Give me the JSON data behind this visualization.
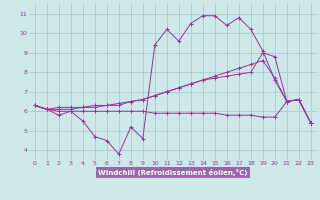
{
  "title": "",
  "xlabel": "Windchill (Refroidissement éolien,°C)",
  "background_color": "#cce8e8",
  "grid_color": "#aacccc",
  "line_color": "#993399",
  "xlabel_bg": "#9966aa",
  "xlabel_text_color": "#ffffff",
  "xlim": [
    -0.5,
    23.5
  ],
  "ylim": [
    3.5,
    11.5
  ],
  "xticks": [
    0,
    1,
    2,
    3,
    4,
    5,
    6,
    7,
    8,
    9,
    10,
    11,
    12,
    13,
    14,
    15,
    16,
    17,
    18,
    19,
    20,
    21,
    22,
    23
  ],
  "yticks": [
    4,
    5,
    6,
    7,
    8,
    9,
    10,
    11
  ],
  "series": [
    {
      "x": [
        0,
        1,
        2,
        3,
        4,
        5,
        6,
        7,
        8,
        9,
        10,
        11,
        12,
        13,
        14,
        15,
        16,
        17,
        18,
        19,
        20,
        21,
        22,
        23
      ],
      "y": [
        6.3,
        6.1,
        5.8,
        6.0,
        5.5,
        4.7,
        4.5,
        3.8,
        5.2,
        4.6,
        9.4,
        10.2,
        9.6,
        10.5,
        10.9,
        10.9,
        10.4,
        10.8,
        10.2,
        9.1,
        7.6,
        6.5,
        6.6,
        5.4
      ]
    },
    {
      "x": [
        0,
        1,
        2,
        3,
        4,
        5,
        6,
        7,
        8,
        9,
        10,
        11,
        12,
        13,
        14,
        15,
        16,
        17,
        18,
        19,
        20,
        21,
        22,
        23
      ],
      "y": [
        6.3,
        6.1,
        6.2,
        6.2,
        6.2,
        6.3,
        6.3,
        6.4,
        6.5,
        6.6,
        6.8,
        7.0,
        7.2,
        7.4,
        7.6,
        7.7,
        7.8,
        7.9,
        8.0,
        9.0,
        8.8,
        6.5,
        6.6,
        5.4
      ]
    },
    {
      "x": [
        0,
        1,
        2,
        3,
        4,
        5,
        6,
        7,
        8,
        9,
        10,
        11,
        12,
        13,
        14,
        15,
        16,
        17,
        18,
        19,
        20,
        21,
        22,
        23
      ],
      "y": [
        6.3,
        6.1,
        6.1,
        6.1,
        6.2,
        6.2,
        6.3,
        6.3,
        6.5,
        6.6,
        6.8,
        7.0,
        7.2,
        7.4,
        7.6,
        7.8,
        8.0,
        8.2,
        8.4,
        8.6,
        7.7,
        6.5,
        6.6,
        5.4
      ]
    },
    {
      "x": [
        0,
        1,
        2,
        3,
        4,
        5,
        6,
        7,
        8,
        9,
        10,
        11,
        12,
        13,
        14,
        15,
        16,
        17,
        18,
        19,
        20,
        21,
        22,
        23
      ],
      "y": [
        6.3,
        6.1,
        6.0,
        6.0,
        6.0,
        6.0,
        6.0,
        6.0,
        6.0,
        6.0,
        5.9,
        5.9,
        5.9,
        5.9,
        5.9,
        5.9,
        5.8,
        5.8,
        5.8,
        5.7,
        5.7,
        6.5,
        6.6,
        5.4
      ]
    }
  ]
}
